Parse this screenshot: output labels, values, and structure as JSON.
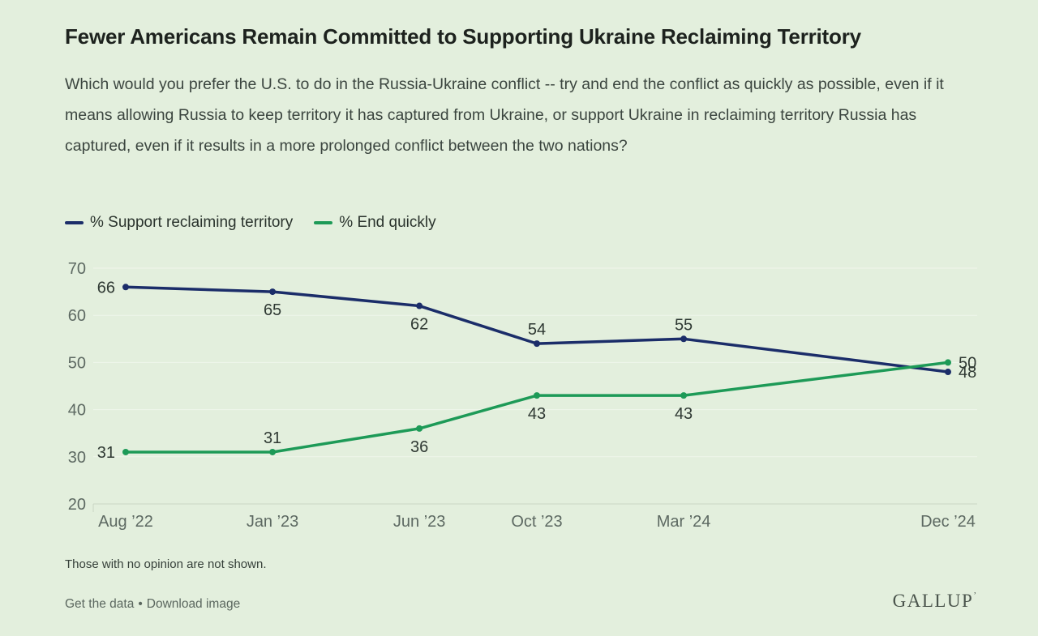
{
  "page": {
    "background": "#e3efdd",
    "title": "Fewer Americans Remain Committed to Supporting Ukraine Reclaiming Territory",
    "subtitle": "Which would you prefer the U.S. to do in the Russia-Ukraine conflict -- try and end the conflict as quickly as possible, even if it means allowing Russia to keep territory it has captured from Ukraine, or support Ukraine in reclaiming territory Russia has captured, even if it results in a more prolonged conflict between the two nations?",
    "note": "Those with no opinion are not shown.",
    "links": {
      "get_data": "Get the data",
      "separator": "•",
      "download": "Download image"
    },
    "logo": {
      "text": "GALLUP",
      "mark": "’"
    }
  },
  "chart_data": {
    "type": "line",
    "x": [
      0,
      5,
      10,
      14,
      19,
      28
    ],
    "x_tick_labels": [
      "Aug ’22",
      "Jan ’23",
      "Jun ’23",
      "Oct ’23",
      "Mar ’24",
      "Dec ’24"
    ],
    "ylim": [
      20,
      70
    ],
    "y_ticks": [
      20,
      30,
      40,
      50,
      60,
      70
    ],
    "grid": "horizontal-only",
    "legend_position": "top-left",
    "axis_label_color": "#5d6962",
    "data_label_color": "#2f3933",
    "gridline_color": "#f0f6ec",
    "axisline_color": "#c8d4c3",
    "series": [
      {
        "name": "% Support reclaiming territory",
        "color": "#1b2d69",
        "values": [
          66,
          65,
          62,
          54,
          55,
          48
        ],
        "label_positions": [
          "left",
          "below",
          "below",
          "above",
          "above",
          "right"
        ]
      },
      {
        "name": "% End quickly",
        "color": "#1d9a57",
        "values": [
          31,
          31,
          36,
          43,
          43,
          50
        ],
        "label_positions": [
          "left",
          "above",
          "below",
          "below",
          "below",
          "right"
        ]
      }
    ]
  }
}
